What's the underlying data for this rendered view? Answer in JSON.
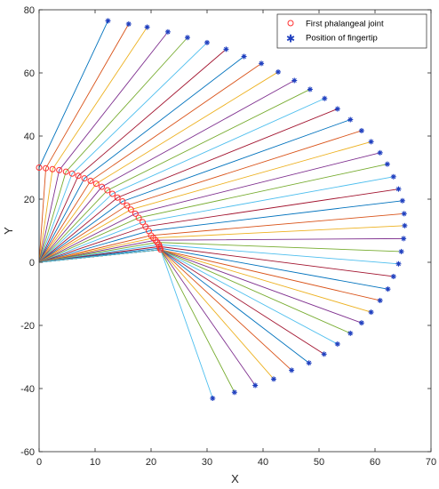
{
  "chart_data": {
    "type": "scatter",
    "title": "",
    "xlabel": "X",
    "ylabel": "Y",
    "xlim": [
      0,
      70
    ],
    "ylim": [
      -60,
      80
    ],
    "xticks": [
      0,
      10,
      20,
      30,
      40,
      50,
      60,
      70
    ],
    "yticks": [
      -60,
      -40,
      -20,
      0,
      20,
      40,
      60,
      80
    ],
    "grid": false,
    "legend_position": "top-right",
    "origin": [
      0,
      0
    ],
    "series": [
      {
        "name": "First phalangeal joint",
        "marker": "circle",
        "color": "#ff3030",
        "x": [
          0,
          1.2,
          2.4,
          3.6,
          4.8,
          5.9,
          7.0,
          8.1,
          9.2,
          10.2,
          11.2,
          12.2,
          13.1,
          14.0,
          14.9,
          15.7,
          16.4,
          17.2,
          17.8,
          18.5,
          19.0,
          19.6,
          20.0,
          20.4,
          20.8,
          21.1,
          21.4,
          21.5,
          21.6,
          21.7
        ],
        "y": [
          30.0,
          29.8,
          29.5,
          29.2,
          28.7,
          28.1,
          27.4,
          26.6,
          25.8,
          24.9,
          23.9,
          22.8,
          21.7,
          20.5,
          19.3,
          18.0,
          16.7,
          15.4,
          14.1,
          12.7,
          11.3,
          9.9,
          8.5,
          7.7,
          7.0,
          6.3,
          5.6,
          5.0,
          4.5,
          4.0
        ]
      },
      {
        "name": "Position of fingertip",
        "marker": "star",
        "color": "#1f3fbf",
        "x": [
          12.3,
          16.0,
          19.3,
          23.0,
          26.5,
          30.0,
          33.4,
          36.6,
          39.7,
          42.7,
          45.6,
          48.4,
          51.0,
          53.3,
          55.6,
          57.6,
          59.3,
          60.9,
          62.2,
          63.3,
          64.2,
          64.9,
          65.2,
          65.3,
          65.1,
          64.7,
          64.2,
          63.3,
          62.3,
          60.9,
          59.3,
          57.6,
          55.6,
          53.3,
          50.9,
          48.2,
          45.1,
          41.9,
          38.6,
          34.9,
          31.0
        ],
        "y": [
          76.5,
          75.5,
          74.5,
          73.0,
          71.2,
          69.6,
          67.5,
          65.2,
          63.0,
          60.3,
          57.6,
          54.8,
          51.9,
          48.6,
          45.2,
          41.7,
          38.2,
          34.7,
          31.1,
          27.1,
          23.2,
          19.5,
          15.4,
          11.6,
          7.5,
          3.4,
          -0.5,
          -4.5,
          -8.5,
          -12.1,
          -15.8,
          -19.2,
          -22.5,
          -25.9,
          -29.1,
          -31.9,
          -34.2,
          -37.0,
          -39.0,
          -41.2,
          -43.1
        ]
      }
    ]
  },
  "colors": {
    "line_cycle": [
      "#0072bd",
      "#d95319",
      "#edb120",
      "#7e2f8e",
      "#77ac30",
      "#4dbeee",
      "#a2142f"
    ]
  }
}
